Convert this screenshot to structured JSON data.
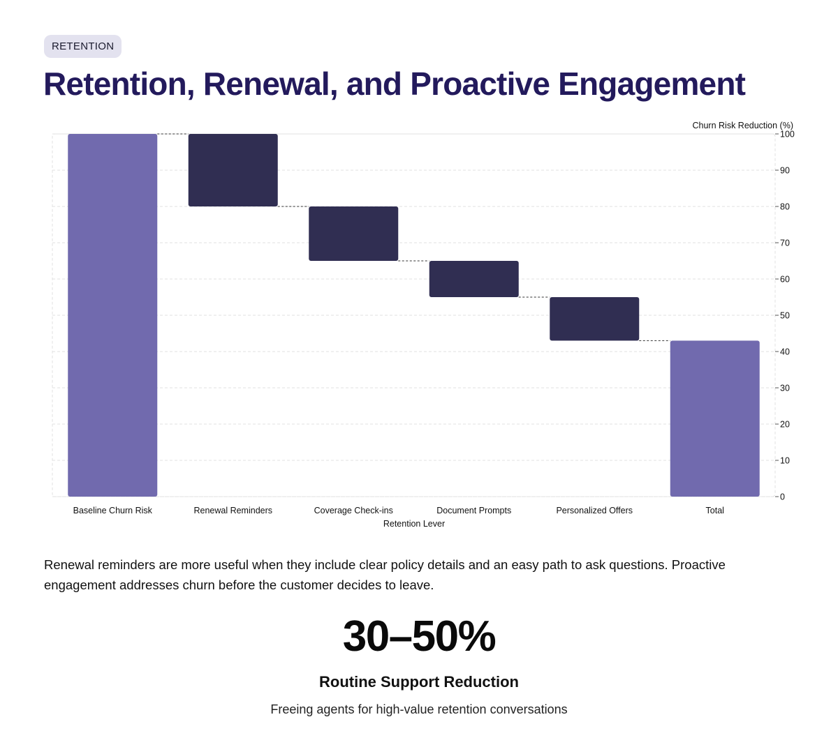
{
  "badge": "RETENTION",
  "title": "Retention, Renewal, and Proactive Engagement",
  "colors": {
    "title": "#231a5c",
    "total_bar": "#716aae",
    "delta_bar": "#302e52",
    "grid": "#e2e2e2",
    "connector": "#333333",
    "badge_bg": "#e3e2ef"
  },
  "chart_data": {
    "type": "bar",
    "subtype": "waterfall",
    "categories": [
      "Baseline Churn Risk",
      "Renewal Reminders",
      "Coverage Check-ins",
      "Document Prompts",
      "Personalized Offers",
      "Total"
    ],
    "steps": [
      {
        "category": "Baseline Churn Risk",
        "kind": "total",
        "start": 0,
        "end": 100
      },
      {
        "category": "Renewal Reminders",
        "kind": "delta",
        "start": 100,
        "end": 80
      },
      {
        "category": "Coverage Check-ins",
        "kind": "delta",
        "start": 80,
        "end": 65
      },
      {
        "category": "Document Prompts",
        "kind": "delta",
        "start": 65,
        "end": 55
      },
      {
        "category": "Personalized Offers",
        "kind": "delta",
        "start": 55,
        "end": 43
      },
      {
        "category": "Total",
        "kind": "total",
        "start": 0,
        "end": 43
      }
    ],
    "xlabel": "Retention Lever",
    "ylabel": "Churn Risk Reduction (%)",
    "ylim": [
      0,
      100
    ],
    "yticks": [
      0,
      10,
      20,
      30,
      40,
      50,
      60,
      70,
      80,
      90,
      100
    ],
    "y_axis_side": "right",
    "grid": true,
    "legend": "none"
  },
  "body_text": "Renewal reminders are more useful when they include clear policy details and an easy path to ask questions. Proactive engagement addresses churn before the customer decides to leave.",
  "stat": {
    "value": "30–50%",
    "label": "Routine Support Reduction",
    "caption": "Freeing agents for high-value retention conversations"
  }
}
